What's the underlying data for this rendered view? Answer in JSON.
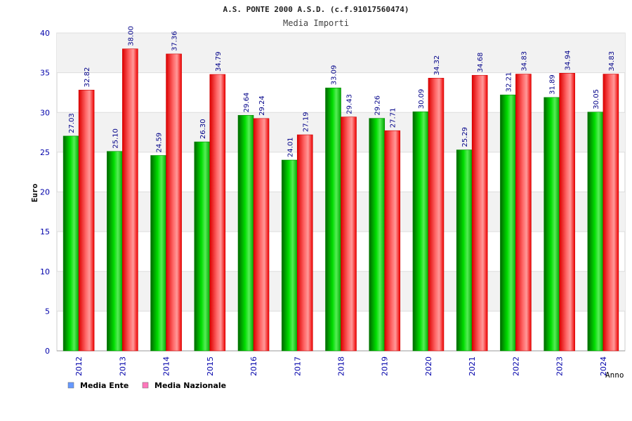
{
  "chart_data": {
    "type": "bar",
    "title": "A.S. PONTE 2000 A.S.D. (c.f.91017560474)",
    "subtitle": "Media Importi",
    "xlabel": "Anno",
    "ylabel": "Euro",
    "ylim": [
      0,
      40
    ],
    "yticks": [
      0,
      5,
      10,
      15,
      20,
      25,
      30,
      35,
      40
    ],
    "grid": true,
    "legend_position": "bottom-left",
    "categories": [
      "2012",
      "2013",
      "2014",
      "2015",
      "2016",
      "2017",
      "2018",
      "2019",
      "2020",
      "2021",
      "2022",
      "2023",
      "2024"
    ],
    "series": [
      {
        "name": "Media Ente",
        "color": "#00bb00",
        "legend_color": "#6699ff",
        "values": [
          27.03,
          25.1,
          24.59,
          26.3,
          29.64,
          24.01,
          33.09,
          29.26,
          30.09,
          25.29,
          32.21,
          31.89,
          30.05
        ],
        "labels": [
          "27.03",
          "25.10",
          "24.59",
          "26.30",
          "29.64",
          "24.01",
          "33.09",
          "29.26",
          "30.09",
          "25.29",
          "32.21",
          "31.89",
          "30.05"
        ]
      },
      {
        "name": "Media Nazionale",
        "color": "#ee0000",
        "legend_color": "#ff77bb",
        "values": [
          32.82,
          38.0,
          37.36,
          34.79,
          29.24,
          27.19,
          29.43,
          27.71,
          34.32,
          34.68,
          34.83,
          34.94,
          34.83
        ],
        "labels": [
          "32.82",
          "38.00",
          "37.36",
          "34.79",
          "29.24",
          "27.19",
          "29.43",
          "27.71",
          "34.32",
          "34.68",
          "34.83",
          "34.94",
          "34.83"
        ]
      }
    ]
  }
}
